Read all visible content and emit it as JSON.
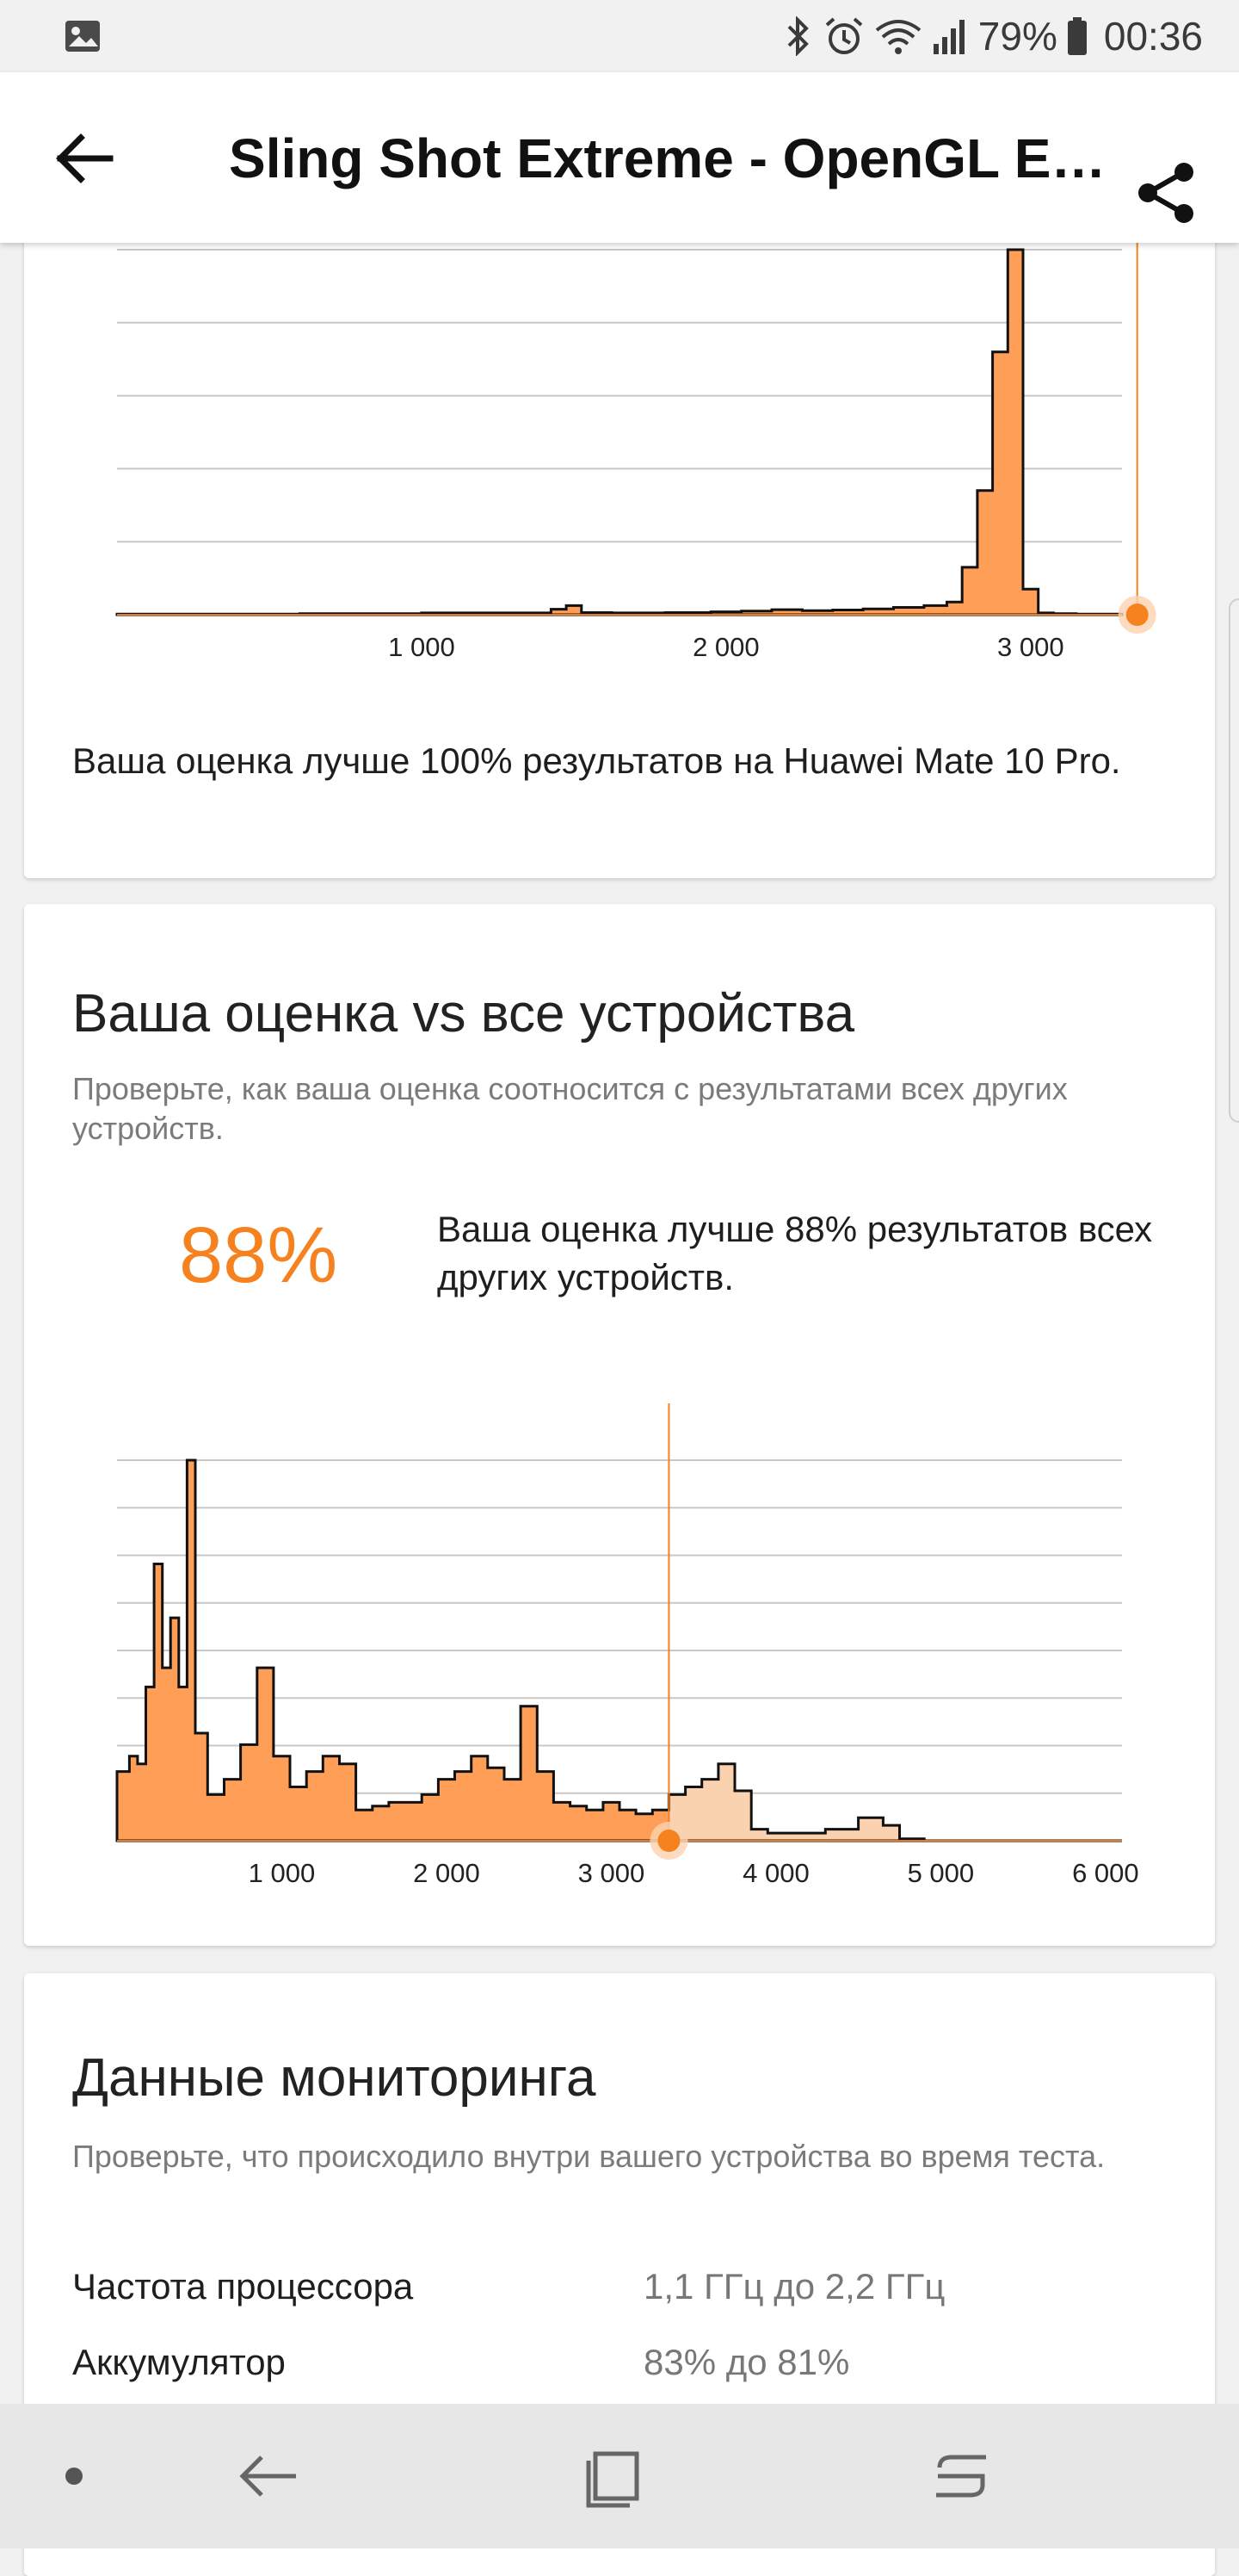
{
  "status_bar": {
    "battery": "79%",
    "time": "00:36",
    "icons": [
      "gallery-icon",
      "bluetooth-icon",
      "alarm-icon",
      "wifi-icon",
      "signal-icon",
      "battery-icon"
    ]
  },
  "app_bar": {
    "title": "Sling Shot Extreme - OpenGL E…",
    "back_icon": "arrow-left-icon",
    "share_icon": "share-icon"
  },
  "device_card": {
    "description": "Ваша оценка лучше 100% результатов на Huawei Mate 10 Pro."
  },
  "all_devices_card": {
    "title": "Ваша оценка vs все устройства",
    "subtitle": "Проверьте, как ваша оценка соотносится с результатами всех других устройств.",
    "percent": "88%",
    "description": "Ваша оценка лучше 88% результатов всех других устройств."
  },
  "monitoring_card": {
    "title": "Данные мониторинга",
    "subtitle": "Проверьте, что происходило внутри вашего устройства во время теста.",
    "rows": [
      {
        "label": "Частота процессора",
        "value": "1,1 ГГц до 2,2 ГГц"
      },
      {
        "label": "Аккумулятор",
        "value": "83% до 81%"
      }
    ]
  },
  "chart_data": [
    {
      "type": "area",
      "xticks": [
        1000,
        2000,
        3000
      ],
      "xtick_labels": [
        "1 000",
        "2 000",
        "3 000"
      ],
      "xlim": [
        0,
        3300
      ],
      "grid": true,
      "your_score": 3350,
      "x": [
        100,
        300,
        500,
        700,
        900,
        1100,
        1200,
        1400,
        1450,
        1500,
        1550,
        1700,
        1900,
        2000,
        2100,
        2200,
        2300,
        2400,
        2500,
        2600,
        2700,
        2750,
        2800,
        2850,
        2900,
        2950,
        3000,
        3050,
        3100,
        3200
      ],
      "y": [
        0.2,
        0.2,
        0.2,
        0.3,
        0.3,
        0.5,
        0.5,
        0.5,
        1.5,
        2.5,
        0.6,
        0.5,
        0.6,
        0.8,
        1.0,
        1.4,
        1.1,
        1.3,
        1.6,
        2.0,
        2.5,
        3.5,
        13,
        34,
        72,
        100,
        7,
        0.5,
        0.3,
        0.2
      ]
    },
    {
      "type": "area",
      "xticks": [
        1000,
        2000,
        3000,
        4000,
        5000,
        6000
      ],
      "xtick_labels": [
        "1 000",
        "2 000",
        "3 000",
        "4 000",
        "5 000",
        "6 000"
      ],
      "xlim": [
        0,
        6100
      ],
      "grid": true,
      "your_score": 3350,
      "x": [
        50,
        100,
        150,
        200,
        250,
        300,
        350,
        400,
        450,
        500,
        600,
        700,
        800,
        900,
        1000,
        1100,
        1200,
        1300,
        1400,
        1500,
        1600,
        1700,
        1800,
        1900,
        2000,
        2100,
        2200,
        2300,
        2400,
        2500,
        2600,
        2700,
        2800,
        2900,
        3000,
        3100,
        3200,
        3300,
        3400,
        3500,
        3600,
        3700,
        3800,
        3900,
        4000,
        4200,
        4400,
        4600,
        4700,
        4800,
        5000,
        5500,
        6000
      ],
      "y": [
        18,
        22,
        20,
        40,
        72,
        45,
        58,
        40,
        99,
        28,
        12,
        16,
        25,
        45,
        22,
        14,
        18,
        22,
        20,
        8,
        9,
        10,
        10,
        12,
        16,
        18,
        22,
        19,
        16,
        35,
        18,
        10,
        9,
        8,
        10,
        8,
        7,
        8,
        12,
        14,
        16,
        20,
        13,
        3,
        2,
        2,
        3,
        6,
        4,
        0.5,
        0,
        0,
        0
      ]
    }
  ]
}
